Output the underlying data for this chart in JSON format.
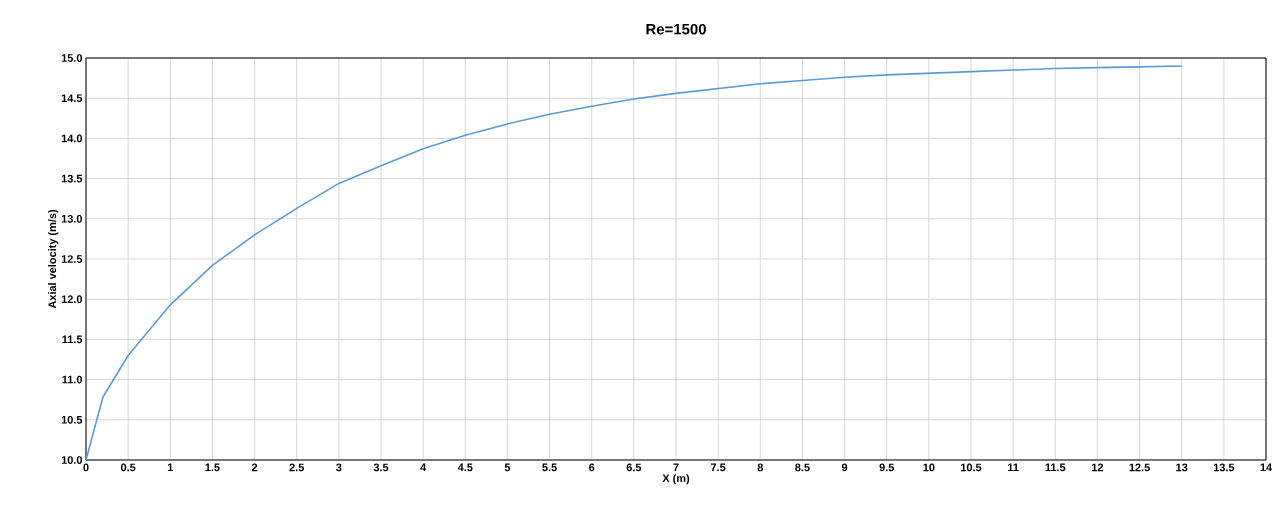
{
  "chart_data": {
    "type": "line",
    "title": "Re=1500",
    "xlabel": "X (m)",
    "ylabel": "Axial velocity (m/s)",
    "x": [
      0,
      0.2,
      0.5,
      1,
      1.5,
      2,
      2.5,
      3,
      3.5,
      4,
      4.5,
      5,
      5.5,
      6,
      6.5,
      7,
      7.5,
      8,
      8.5,
      9,
      9.5,
      10,
      10.5,
      11,
      11.5,
      12,
      12.5,
      13
    ],
    "series": [
      {
        "color": "#5b9bd5",
        "values": [
          10.0,
          10.78,
          11.3,
          11.93,
          12.42,
          12.8,
          13.13,
          13.44,
          13.66,
          13.87,
          14.04,
          14.18,
          14.3,
          14.4,
          14.49,
          14.56,
          14.62,
          14.68,
          14.72,
          14.76,
          14.79,
          14.81,
          14.83,
          14.85,
          14.87,
          14.88,
          14.89,
          14.9
        ]
      }
    ],
    "xlim": [
      0,
      14
    ],
    "ylim": [
      10,
      15
    ],
    "xticks": [
      0,
      0.5,
      1,
      1.5,
      2,
      2.5,
      3,
      3.5,
      4,
      4.5,
      5,
      5.5,
      6,
      6.5,
      7,
      7.5,
      8,
      8.5,
      9,
      9.5,
      10,
      10.5,
      11,
      11.5,
      12,
      12.5,
      13,
      13.5,
      14
    ],
    "yticks": [
      {
        "value": 10,
        "label": "10.0"
      },
      {
        "value": 10.5,
        "label": "10.5"
      },
      {
        "value": 11,
        "label": "11.0"
      },
      {
        "value": 11.5,
        "label": "11.5"
      },
      {
        "value": 12,
        "label": "12.0"
      },
      {
        "value": 12.5,
        "label": "12.5"
      },
      {
        "value": 13,
        "label": "13.0"
      },
      {
        "value": 13.5,
        "label": "13.5"
      },
      {
        "value": 14,
        "label": "14.0"
      },
      {
        "value": 14.5,
        "label": "14.5"
      },
      {
        "value": 15,
        "label": "15.0"
      }
    ],
    "grid": true,
    "legend": false,
    "marker": "none",
    "line_style": "solid"
  }
}
